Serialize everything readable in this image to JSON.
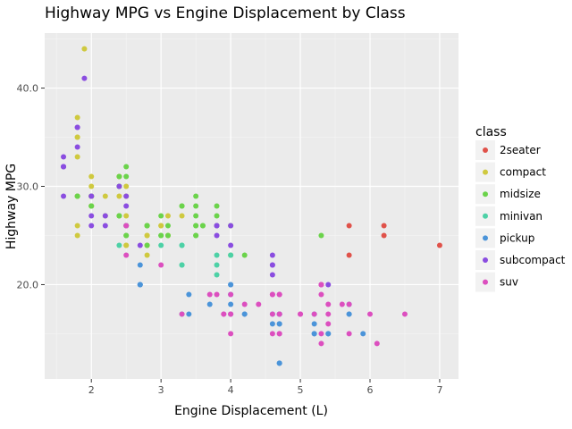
{
  "chart_data": {
    "type": "scatter",
    "title": "Highway MPG vs Engine Displacement by Class",
    "xlabel": "Engine Displacement (L)",
    "ylabel": "Highway MPG",
    "xlim": [
      1.33,
      7.27
    ],
    "ylim": [
      10.4,
      45.6
    ],
    "xticks": [
      2,
      3,
      4,
      5,
      6,
      7
    ],
    "yticks": [
      20,
      30,
      40
    ],
    "grid": true,
    "legend": {
      "title": "class",
      "placement": "right"
    },
    "series": [
      {
        "name": "2seater",
        "color": "#e0524a",
        "points": [
          [
            5.7,
            26
          ],
          [
            5.7,
            23
          ],
          [
            6.2,
            26
          ],
          [
            6.2,
            25
          ],
          [
            7.0,
            24
          ]
        ]
      },
      {
        "name": "compact",
        "color": "#cfc93f",
        "points": [
          [
            1.8,
            29
          ],
          [
            1.8,
            29
          ],
          [
            2.0,
            31
          ],
          [
            2.0,
            30
          ],
          [
            2.8,
            26
          ],
          [
            2.8,
            26
          ],
          [
            3.1,
            27
          ],
          [
            1.8,
            26
          ],
          [
            1.8,
            25
          ],
          [
            2.0,
            28
          ],
          [
            2.0,
            29
          ],
          [
            2.8,
            25
          ],
          [
            2.8,
            25
          ],
          [
            3.1,
            25
          ],
          [
            3.1,
            25
          ],
          [
            2.2,
            27
          ],
          [
            2.2,
            29
          ],
          [
            2.4,
            31
          ],
          [
            2.4,
            31
          ],
          [
            3.0,
            26
          ],
          [
            3.0,
            26
          ],
          [
            3.3,
            27
          ],
          [
            1.8,
            37
          ],
          [
            1.8,
            35
          ],
          [
            1.8,
            33
          ],
          [
            1.8,
            35
          ],
          [
            2.4,
            29
          ],
          [
            2.4,
            27
          ],
          [
            2.5,
            24
          ],
          [
            2.5,
            24
          ],
          [
            2.5,
            26
          ],
          [
            2.5,
            27
          ],
          [
            2.8,
            23
          ],
          [
            2.8,
            24
          ],
          [
            1.9,
            44
          ],
          [
            2.0,
            29
          ],
          [
            2.0,
            29
          ],
          [
            2.0,
            28
          ],
          [
            2.5,
            29
          ],
          [
            2.5,
            30
          ],
          [
            2.8,
            24
          ]
        ]
      },
      {
        "name": "midsize",
        "color": "#6bd34b",
        "points": [
          [
            2.4,
            30
          ],
          [
            2.4,
            31
          ],
          [
            3.1,
            26
          ],
          [
            3.5,
            29
          ],
          [
            3.6,
            26
          ],
          [
            3.3,
            28
          ],
          [
            3.8,
            27
          ],
          [
            3.8,
            28
          ],
          [
            2.4,
            27
          ],
          [
            2.4,
            30
          ],
          [
            2.5,
            31
          ],
          [
            2.5,
            32
          ],
          [
            3.5,
            26
          ],
          [
            3.5,
            25
          ],
          [
            3.5,
            27
          ],
          [
            2.5,
            26
          ],
          [
            2.5,
            25
          ],
          [
            3.0,
            27
          ],
          [
            3.0,
            25
          ],
          [
            3.5,
            26
          ],
          [
            3.5,
            25
          ],
          [
            3.8,
            26
          ],
          [
            4.2,
            23
          ],
          [
            4.0,
            26
          ],
          [
            2.4,
            27
          ],
          [
            2.5,
            25
          ],
          [
            2.8,
            26
          ],
          [
            3.0,
            25
          ],
          [
            3.3,
            28
          ],
          [
            3.5,
            28
          ],
          [
            2.0,
            28
          ],
          [
            2.0,
            29
          ],
          [
            2.8,
            26
          ],
          [
            2.8,
            24
          ],
          [
            3.6,
            26
          ],
          [
            1.8,
            29
          ],
          [
            1.8,
            29
          ],
          [
            2.0,
            28
          ],
          [
            2.0,
            29
          ],
          [
            2.8,
            26
          ],
          [
            3.1,
            25
          ],
          [
            5.3,
            25
          ],
          [
            4.0,
            23
          ]
        ]
      },
      {
        "name": "minivan",
        "color": "#4dd1a6",
        "points": [
          [
            2.4,
            24
          ],
          [
            3.0,
            24
          ],
          [
            3.3,
            22
          ],
          [
            3.3,
            22
          ],
          [
            3.3,
            24
          ],
          [
            3.3,
            24
          ],
          [
            3.3,
            17
          ],
          [
            3.8,
            22
          ],
          [
            3.8,
            21
          ],
          [
            3.8,
            23
          ],
          [
            4.0,
            23
          ]
        ]
      },
      {
        "name": "pickup",
        "color": "#4b94d9",
        "points": [
          [
            2.7,
            20
          ],
          [
            2.7,
            20
          ],
          [
            2.7,
            22
          ],
          [
            3.4,
            17
          ],
          [
            3.4,
            19
          ],
          [
            4.0,
            17
          ],
          [
            4.0,
            18
          ],
          [
            4.7,
            17
          ],
          [
            4.7,
            16
          ],
          [
            4.7,
            12
          ],
          [
            5.2,
            15
          ],
          [
            5.2,
            16
          ],
          [
            5.7,
            17
          ],
          [
            5.9,
            15
          ],
          [
            4.7,
            17
          ],
          [
            4.7,
            16
          ],
          [
            5.2,
            17
          ],
          [
            5.2,
            15
          ],
          [
            5.7,
            17
          ],
          [
            4.6,
            17
          ],
          [
            4.6,
            16
          ],
          [
            4.2,
            17
          ],
          [
            4.2,
            17
          ],
          [
            5.4,
            15
          ],
          [
            5.4,
            15
          ],
          [
            4.0,
            20
          ],
          [
            4.0,
            20
          ],
          [
            2.7,
            20
          ],
          [
            3.7,
            18
          ],
          [
            4.0,
            19
          ],
          [
            4.7,
            17
          ],
          [
            4.7,
            12
          ],
          [
            5.7,
            18
          ]
        ]
      },
      {
        "name": "subcompact",
        "color": "#8a4de0",
        "points": [
          [
            1.6,
            33
          ],
          [
            1.6,
            32
          ],
          [
            1.6,
            32
          ],
          [
            1.6,
            29
          ],
          [
            1.6,
            32
          ],
          [
            1.8,
            34
          ],
          [
            1.8,
            36
          ],
          [
            1.8,
            36
          ],
          [
            2.0,
            26
          ],
          [
            2.0,
            27
          ],
          [
            2.2,
            26
          ],
          [
            2.5,
            26
          ],
          [
            2.5,
            29
          ],
          [
            3.8,
            26
          ],
          [
            3.8,
            25
          ],
          [
            4.0,
            24
          ],
          [
            4.0,
            26
          ],
          [
            4.6,
            23
          ],
          [
            4.6,
            22
          ],
          [
            4.6,
            21
          ],
          [
            5.4,
            20
          ],
          [
            1.9,
            41
          ],
          [
            2.5,
            28
          ],
          [
            2.7,
            24
          ],
          [
            3.8,
            26
          ],
          [
            2.0,
            29
          ],
          [
            2.0,
            29
          ],
          [
            2.4,
            30
          ],
          [
            2.2,
            27
          ],
          [
            4.6,
            22
          ]
        ]
      },
      {
        "name": "suv",
        "color": "#dc4fbf",
        "points": [
          [
            3.7,
            19
          ],
          [
            3.9,
            17
          ],
          [
            3.9,
            17
          ],
          [
            4.7,
            17
          ],
          [
            4.7,
            19
          ],
          [
            4.7,
            19
          ],
          [
            5.2,
            17
          ],
          [
            5.7,
            18
          ],
          [
            6.1,
            14
          ],
          [
            5.3,
            15
          ],
          [
            5.3,
            14
          ],
          [
            5.3,
            20
          ],
          [
            5.3,
            19
          ],
          [
            5.7,
            15
          ],
          [
            6.5,
            17
          ],
          [
            4.0,
            17
          ],
          [
            4.0,
            19
          ],
          [
            4.7,
            15
          ],
          [
            4.7,
            17
          ],
          [
            5.0,
            17
          ],
          [
            5.4,
            17
          ],
          [
            5.4,
            16
          ],
          [
            5.4,
            18
          ],
          [
            4.0,
            15
          ],
          [
            4.6,
            15
          ],
          [
            4.6,
            17
          ],
          [
            5.0,
            17
          ],
          [
            2.5,
            23
          ],
          [
            2.5,
            26
          ],
          [
            3.0,
            22
          ],
          [
            3.3,
            17
          ],
          [
            3.8,
            19
          ],
          [
            4.2,
            18
          ],
          [
            4.4,
            18
          ],
          [
            4.6,
            19
          ],
          [
            5.3,
            20
          ],
          [
            5.6,
            18
          ],
          [
            6.0,
            17
          ],
          [
            4.7,
            15
          ],
          [
            5.3,
            20
          ],
          [
            4.0,
            17
          ],
          [
            4.6,
            19
          ]
        ]
      }
    ]
  }
}
